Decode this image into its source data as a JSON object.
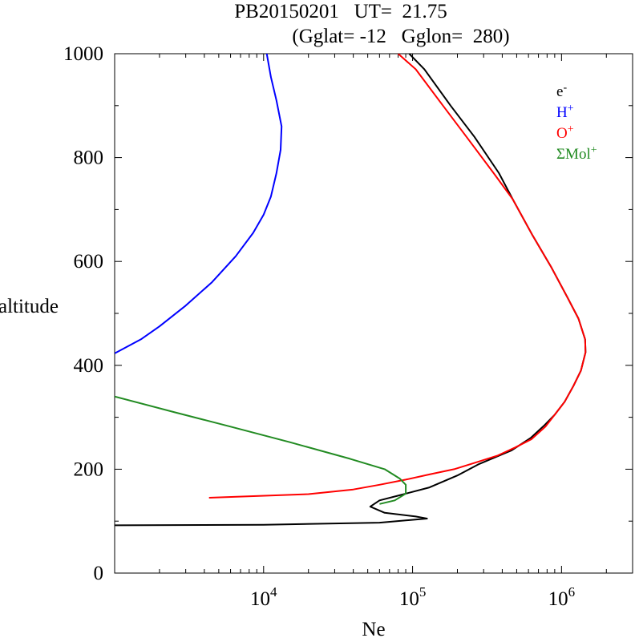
{
  "chart_data": {
    "type": "line",
    "title_line1": "PB20150201   UT=  21.75",
    "title_line2": "(Gglat= -12   Gglon=  280)",
    "xlabel": "Ne",
    "ylabel": "altitude",
    "x_scale": "log",
    "xlim": [
      1000,
      3000000
    ],
    "ylim": [
      0,
      1000
    ],
    "grid": false,
    "legend_position": "top-right",
    "y_ticks": [
      {
        "value": 0,
        "label": "0"
      },
      {
        "value": 200,
        "label": "200"
      },
      {
        "value": 400,
        "label": "400"
      },
      {
        "value": 600,
        "label": "600"
      },
      {
        "value": 800,
        "label": "800"
      },
      {
        "value": 1000,
        "label": "1000"
      }
    ],
    "x_ticks": [
      {
        "value": 10000,
        "base": "10",
        "exp": "4"
      },
      {
        "value": 100000,
        "base": "10",
        "exp": "5"
      },
      {
        "value": 1000000,
        "base": "10",
        "exp": "6"
      }
    ],
    "series": [
      {
        "name": "e-",
        "legend_base": "e",
        "legend_sup": "-",
        "color": "#000000",
        "points": [
          [
            1000,
            92
          ],
          [
            10000,
            93
          ],
          [
            60000,
            97
          ],
          [
            125000,
            105
          ],
          [
            105000,
            109
          ],
          [
            65000,
            116
          ],
          [
            52000,
            128
          ],
          [
            60000,
            140
          ],
          [
            80000,
            149
          ],
          [
            130000,
            165
          ],
          [
            200000,
            188
          ],
          [
            280000,
            210
          ],
          [
            460000,
            236
          ],
          [
            620000,
            260
          ],
          [
            770000,
            285
          ],
          [
            900000,
            305
          ],
          [
            1050000,
            330
          ],
          [
            1200000,
            360
          ],
          [
            1350000,
            390
          ],
          [
            1450000,
            425
          ],
          [
            1440000,
            450
          ],
          [
            1300000,
            490
          ],
          [
            1100000,
            530
          ],
          [
            850000,
            590
          ],
          [
            640000,
            650
          ],
          [
            470000,
            720
          ],
          [
            380000,
            770
          ],
          [
            260000,
            840
          ],
          [
            180000,
            900
          ],
          [
            120000,
            970
          ],
          [
            95000,
            1000
          ]
        ]
      },
      {
        "name": "H+",
        "legend_base": "H",
        "legend_sup": "+",
        "color": "#0000ff",
        "points": [
          [
            1000,
            423
          ],
          [
            1500,
            450
          ],
          [
            2000,
            475
          ],
          [
            3000,
            515
          ],
          [
            4500,
            560
          ],
          [
            6500,
            610
          ],
          [
            8500,
            655
          ],
          [
            10000,
            690
          ],
          [
            11200,
            725
          ],
          [
            12200,
            770
          ],
          [
            13000,
            815
          ],
          [
            13200,
            860
          ],
          [
            12200,
            910
          ],
          [
            11200,
            955
          ],
          [
            10500,
            1000
          ]
        ]
      },
      {
        "name": "O+",
        "legend_base": "O",
        "legend_sup": "+",
        "color": "#ff0000",
        "points": [
          [
            4300,
            145
          ],
          [
            20000,
            152
          ],
          [
            40000,
            161
          ],
          [
            60000,
            170
          ],
          [
            90000,
            180
          ],
          [
            130000,
            190
          ],
          [
            190000,
            200
          ],
          [
            260000,
            212
          ],
          [
            370000,
            226
          ],
          [
            490000,
            242
          ],
          [
            630000,
            258
          ],
          [
            780000,
            282
          ],
          [
            900000,
            305
          ],
          [
            1050000,
            330
          ],
          [
            1200000,
            360
          ],
          [
            1350000,
            390
          ],
          [
            1450000,
            425
          ],
          [
            1440000,
            450
          ],
          [
            1300000,
            490
          ],
          [
            1100000,
            530
          ],
          [
            850000,
            590
          ],
          [
            640000,
            650
          ],
          [
            470000,
            720
          ],
          [
            350000,
            770
          ],
          [
            230000,
            840
          ],
          [
            160000,
            900
          ],
          [
            105000,
            970
          ],
          [
            80000,
            1000
          ]
        ]
      },
      {
        "name": "ΣMol+",
        "legend_base": "ΣMol",
        "legend_sup": "+",
        "color": "#228b22",
        "points": [
          [
            60000,
            133
          ],
          [
            76000,
            140
          ],
          [
            90000,
            153
          ],
          [
            90000,
            170
          ],
          [
            82000,
            182
          ],
          [
            65000,
            200
          ],
          [
            38000,
            220
          ],
          [
            15000,
            252
          ],
          [
            6000,
            282
          ],
          [
            2500,
            310
          ],
          [
            1000,
            340
          ]
        ]
      }
    ]
  }
}
